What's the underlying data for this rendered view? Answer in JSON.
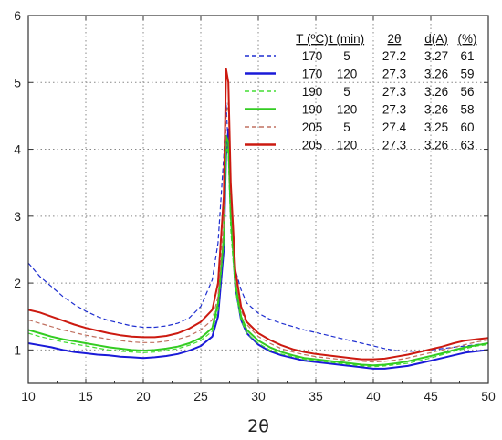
{
  "chart_data": {
    "type": "line",
    "title": "",
    "xlabel": "2θ",
    "ylabel": "",
    "xlim": [
      10,
      50
    ],
    "ylim": [
      0.5,
      6
    ],
    "xticks": [
      10,
      15,
      20,
      25,
      30,
      35,
      40,
      45,
      50
    ],
    "yticks": [
      1,
      2,
      3,
      4,
      5,
      6
    ],
    "grid": true,
    "legend_position": "top-right",
    "legend_headers": [
      "T (ºC)",
      "t (min)",
      "2θ",
      "d(A)",
      "(%)"
    ],
    "x": [
      10,
      11,
      12,
      13,
      14,
      15,
      16,
      17,
      18,
      19,
      20,
      21,
      22,
      23,
      24,
      25,
      26,
      26.5,
      27,
      27.2,
      27.4,
      27.6,
      28,
      28.5,
      29,
      30,
      31,
      32,
      33,
      34,
      35,
      36,
      37,
      38,
      39,
      40,
      41,
      42,
      43,
      44,
      45,
      46,
      47,
      48,
      49,
      50
    ],
    "series": [
      {
        "name": "170 5",
        "T": "170",
        "t": "5",
        "two_theta": "27.2",
        "d": "3.27",
        "pct": "61",
        "color": "#1f2fd0",
        "dash": true,
        "values": [
          2.3,
          2.1,
          1.95,
          1.8,
          1.68,
          1.58,
          1.5,
          1.44,
          1.4,
          1.36,
          1.34,
          1.34,
          1.36,
          1.4,
          1.48,
          1.65,
          2.05,
          2.6,
          3.9,
          4.7,
          4.0,
          2.9,
          2.2,
          1.9,
          1.7,
          1.55,
          1.46,
          1.4,
          1.35,
          1.3,
          1.26,
          1.22,
          1.18,
          1.14,
          1.1,
          1.06,
          1.02,
          0.99,
          0.98,
          0.98,
          1.0,
          1.02,
          1.04,
          1.06,
          1.08,
          1.1
        ]
      },
      {
        "name": "170 120",
        "T": "170",
        "t": "120",
        "two_theta": "27.3",
        "d": "3.26",
        "pct": "59",
        "color": "#1a1ad8",
        "dash": false,
        "values": [
          1.1,
          1.07,
          1.04,
          1.0,
          0.97,
          0.95,
          0.93,
          0.92,
          0.9,
          0.89,
          0.88,
          0.89,
          0.91,
          0.94,
          0.99,
          1.06,
          1.2,
          1.5,
          2.5,
          3.9,
          4.3,
          3.1,
          1.95,
          1.45,
          1.25,
          1.08,
          0.98,
          0.92,
          0.88,
          0.84,
          0.82,
          0.8,
          0.78,
          0.76,
          0.74,
          0.72,
          0.72,
          0.74,
          0.76,
          0.8,
          0.84,
          0.88,
          0.92,
          0.96,
          0.98,
          1.0
        ]
      },
      {
        "name": "190 5",
        "T": "190",
        "t": "5",
        "two_theta": "27.3",
        "d": "3.26",
        "pct": "56",
        "color": "#44dd33",
        "dash": true,
        "values": [
          1.25,
          1.2,
          1.16,
          1.12,
          1.09,
          1.06,
          1.03,
          1.0,
          0.98,
          0.97,
          0.96,
          0.97,
          0.99,
          1.02,
          1.07,
          1.14,
          1.28,
          1.6,
          2.6,
          4.1,
          3.9,
          2.8,
          1.9,
          1.45,
          1.25,
          1.1,
          1.0,
          0.94,
          0.9,
          0.86,
          0.84,
          0.82,
          0.8,
          0.78,
          0.76,
          0.75,
          0.76,
          0.78,
          0.8,
          0.84,
          0.88,
          0.93,
          0.98,
          1.02,
          1.06,
          1.08
        ]
      },
      {
        "name": "190 120",
        "T": "190",
        "t": "120",
        "two_theta": "27.3",
        "d": "3.26",
        "pct": "58",
        "color": "#33cc22",
        "dash": false,
        "values": [
          1.3,
          1.25,
          1.2,
          1.16,
          1.13,
          1.1,
          1.07,
          1.04,
          1.02,
          1.0,
          0.99,
          1.0,
          1.02,
          1.05,
          1.1,
          1.18,
          1.33,
          1.7,
          2.7,
          4.2,
          4.1,
          3.0,
          2.0,
          1.5,
          1.3,
          1.14,
          1.04,
          0.97,
          0.92,
          0.88,
          0.86,
          0.84,
          0.82,
          0.8,
          0.78,
          0.77,
          0.78,
          0.8,
          0.83,
          0.87,
          0.91,
          0.95,
          1.0,
          1.04,
          1.07,
          1.1
        ]
      },
      {
        "name": "205 5",
        "T": "205",
        "t": "5",
        "two_theta": "27.4",
        "d": "3.25",
        "pct": "60",
        "color": "#c07060",
        "dash": true,
        "values": [
          1.45,
          1.4,
          1.35,
          1.3,
          1.26,
          1.22,
          1.19,
          1.16,
          1.14,
          1.12,
          1.11,
          1.11,
          1.13,
          1.16,
          1.21,
          1.3,
          1.45,
          1.8,
          2.9,
          4.5,
          4.7,
          3.3,
          2.1,
          1.6,
          1.38,
          1.2,
          1.1,
          1.02,
          0.97,
          0.93,
          0.9,
          0.88,
          0.86,
          0.84,
          0.83,
          0.82,
          0.83,
          0.85,
          0.88,
          0.92,
          0.96,
          1.0,
          1.04,
          1.08,
          1.12,
          1.15
        ]
      },
      {
        "name": "205 120",
        "T": "205",
        "t": "120",
        "two_theta": "27.3",
        "d": "3.26",
        "pct": "63",
        "color": "#cc1a10",
        "dash": false,
        "values": [
          1.6,
          1.56,
          1.5,
          1.44,
          1.38,
          1.33,
          1.29,
          1.25,
          1.22,
          1.2,
          1.19,
          1.19,
          1.21,
          1.25,
          1.32,
          1.42,
          1.6,
          2.0,
          3.3,
          5.2,
          5.0,
          3.5,
          2.2,
          1.65,
          1.42,
          1.25,
          1.15,
          1.07,
          1.01,
          0.97,
          0.94,
          0.92,
          0.9,
          0.88,
          0.86,
          0.86,
          0.87,
          0.9,
          0.93,
          0.97,
          1.01,
          1.05,
          1.1,
          1.14,
          1.16,
          1.18
        ]
      }
    ]
  }
}
